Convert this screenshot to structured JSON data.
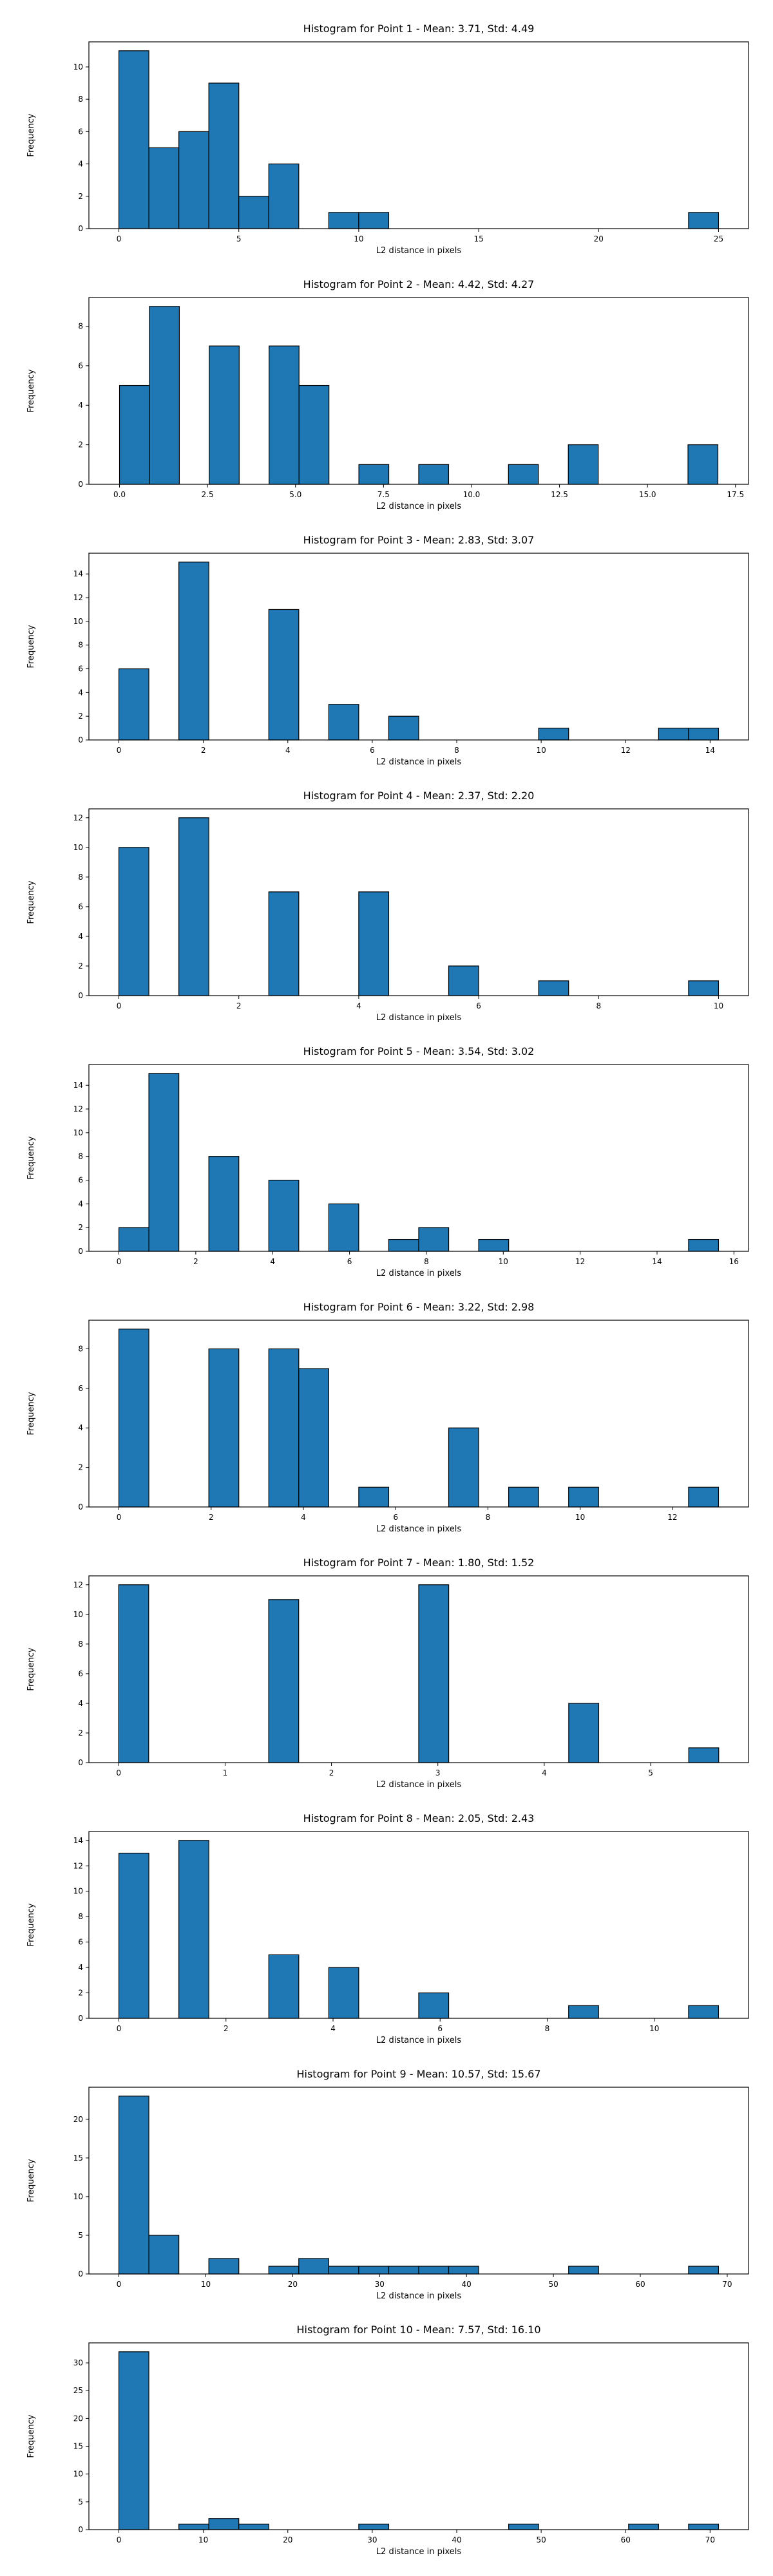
{
  "colors": {
    "bar_fill": "#1f77b4",
    "bar_edge": "#000000",
    "background": "#ffffff"
  },
  "chart_data": [
    {
      "type": "bar",
      "title": "Histogram for Point 1 - Mean: 3.71, Std: 4.49",
      "xlabel": "L2 distance in pixels",
      "ylabel": "Frequency",
      "xlim": [
        -1.25,
        26.25
      ],
      "ylim": [
        0,
        11.55
      ],
      "bin_edges": [
        0,
        1.25,
        2.5,
        3.75,
        5,
        6.25,
        7.5,
        8.75,
        10,
        11.25,
        12.5,
        13.75,
        15,
        16.25,
        17.5,
        18.75,
        20,
        21.25,
        22.5,
        23.75,
        25
      ],
      "values": [
        11,
        5,
        6,
        9,
        2,
        4,
        0,
        1,
        1,
        0,
        0,
        0,
        0,
        0,
        0,
        0,
        0,
        0,
        0,
        1
      ],
      "x_ticks": [
        0,
        5,
        10,
        15,
        20,
        25
      ],
      "y_ticks": [
        0,
        2,
        4,
        6,
        8,
        10
      ],
      "grid": false
    },
    {
      "type": "bar",
      "title": "Histogram for Point 2 - Mean: 4.42, Std: 4.27",
      "xlabel": "L2 distance in pixels",
      "ylabel": "Frequency",
      "xlim": [
        -0.87,
        17.87
      ],
      "ylim": [
        0,
        9.45
      ],
      "bin_edges": [
        0,
        0.85,
        1.7,
        2.55,
        3.4,
        4.25,
        5.1,
        5.95,
        6.8,
        7.65,
        8.5,
        9.35,
        10.2,
        11.05,
        11.9,
        12.75,
        13.6,
        14.45,
        15.3,
        16.15,
        17.0
      ],
      "values": [
        5,
        9,
        0,
        7,
        0,
        7,
        5,
        0,
        1,
        0,
        1,
        0,
        0,
        1,
        0,
        2,
        0,
        0,
        0,
        2
      ],
      "x_ticks": [
        0.0,
        2.5,
        5.0,
        7.5,
        10.0,
        12.5,
        15.0,
        17.5
      ],
      "y_ticks": [
        0,
        2,
        4,
        6,
        8
      ],
      "grid": false
    },
    {
      "type": "bar",
      "title": "Histogram for Point 3 - Mean: 2.83, Std: 3.07",
      "xlabel": "L2 distance in pixels",
      "ylabel": "Frequency",
      "xlim": [
        -0.71,
        14.91
      ],
      "ylim": [
        0,
        15.75
      ],
      "bin_edges": [
        0,
        0.71,
        1.42,
        2.13,
        2.84,
        3.55,
        4.26,
        4.97,
        5.68,
        6.39,
        7.1,
        7.81,
        8.52,
        9.23,
        9.94,
        10.65,
        11.36,
        12.07,
        12.78,
        13.49,
        14.2
      ],
      "values": [
        6,
        0,
        15,
        0,
        0,
        11,
        0,
        3,
        0,
        2,
        0,
        0,
        0,
        0,
        1,
        0,
        0,
        0,
        1,
        1
      ],
      "x_ticks": [
        0,
        2,
        4,
        6,
        8,
        10,
        12,
        14
      ],
      "y_ticks": [
        0,
        2,
        4,
        6,
        8,
        10,
        12,
        14
      ],
      "grid": false
    },
    {
      "type": "bar",
      "title": "Histogram for Point 4 - Mean: 2.37, Std: 2.20",
      "xlabel": "L2 distance in pixels",
      "ylabel": "Frequency",
      "xlim": [
        -0.5,
        10.5
      ],
      "ylim": [
        0,
        12.6
      ],
      "bin_edges": [
        0,
        0.5,
        1.0,
        1.5,
        2.0,
        2.5,
        3.0,
        3.5,
        4.0,
        4.5,
        5.0,
        5.5,
        6.0,
        6.5,
        7.0,
        7.5,
        8.0,
        8.5,
        9.0,
        9.5,
        10.0
      ],
      "values": [
        10,
        0,
        12,
        0,
        0,
        7,
        0,
        0,
        7,
        0,
        0,
        2,
        0,
        0,
        1,
        0,
        0,
        0,
        0,
        1
      ],
      "x_ticks": [
        0,
        2,
        4,
        6,
        8,
        10
      ],
      "y_ticks": [
        0,
        2,
        4,
        6,
        8,
        10,
        12
      ],
      "grid": false
    },
    {
      "type": "bar",
      "title": "Histogram for Point 5 - Mean: 3.54, Std: 3.02",
      "xlabel": "L2 distance in pixels",
      "ylabel": "Frequency",
      "xlim": [
        -0.78,
        16.38
      ],
      "ylim": [
        0,
        15.75
      ],
      "bin_edges": [
        0,
        0.78,
        1.56,
        2.34,
        3.12,
        3.9,
        4.68,
        5.46,
        6.24,
        7.02,
        7.8,
        8.58,
        9.36,
        10.14,
        10.92,
        11.7,
        12.48,
        13.26,
        14.04,
        14.82,
        15.6
      ],
      "values": [
        2,
        15,
        0,
        8,
        0,
        6,
        0,
        4,
        0,
        1,
        2,
        0,
        1,
        0,
        0,
        0,
        0,
        0,
        0,
        1
      ],
      "x_ticks": [
        0,
        2,
        4,
        6,
        8,
        10,
        12,
        14,
        16
      ],
      "y_ticks": [
        0,
        2,
        4,
        6,
        8,
        10,
        12,
        14
      ],
      "grid": false
    },
    {
      "type": "bar",
      "title": "Histogram for Point 6 - Mean: 3.22, Std: 2.98",
      "xlabel": "L2 distance in pixels",
      "ylabel": "Frequency",
      "xlim": [
        -0.65,
        13.65
      ],
      "ylim": [
        0,
        9.45
      ],
      "bin_edges": [
        0,
        0.65,
        1.3,
        1.95,
        2.6,
        3.25,
        3.9,
        4.55,
        5.2,
        5.85,
        6.5,
        7.15,
        7.8,
        8.45,
        9.1,
        9.75,
        10.4,
        11.05,
        11.7,
        12.35,
        13.0
      ],
      "values": [
        9,
        0,
        0,
        8,
        0,
        8,
        7,
        0,
        1,
        0,
        0,
        4,
        0,
        1,
        0,
        1,
        0,
        0,
        0,
        1
      ],
      "x_ticks": [
        0,
        2,
        4,
        6,
        8,
        10,
        12
      ],
      "y_ticks": [
        0,
        2,
        4,
        6,
        8
      ],
      "grid": false
    },
    {
      "type": "bar",
      "title": "Histogram for Point 7 - Mean: 1.80, Std: 1.52",
      "xlabel": "L2 distance in pixels",
      "ylabel": "Frequency",
      "xlim": [
        -0.28,
        5.92
      ],
      "ylim": [
        0,
        12.6
      ],
      "bin_edges": [
        0,
        0.282,
        0.564,
        0.846,
        1.128,
        1.41,
        1.692,
        1.974,
        2.256,
        2.538,
        2.82,
        3.102,
        3.384,
        3.666,
        3.948,
        4.23,
        4.512,
        4.794,
        5.076,
        5.358,
        5.64
      ],
      "values": [
        12,
        0,
        0,
        0,
        0,
        11,
        0,
        0,
        0,
        0,
        12,
        0,
        0,
        0,
        0,
        4,
        0,
        0,
        0,
        1
      ],
      "x_ticks": [
        0,
        1,
        2,
        3,
        4,
        5
      ],
      "y_ticks": [
        0,
        2,
        4,
        6,
        8,
        10,
        12
      ],
      "grid": false
    },
    {
      "type": "bar",
      "title": "Histogram for Point 8 - Mean: 2.05, Std: 2.43",
      "xlabel": "L2 distance in pixels",
      "ylabel": "Frequency",
      "xlim": [
        -0.56,
        11.76
      ],
      "ylim": [
        0,
        14.7
      ],
      "bin_edges": [
        0,
        0.56,
        1.12,
        1.68,
        2.24,
        2.8,
        3.36,
        3.92,
        4.48,
        5.04,
        5.6,
        6.16,
        6.72,
        7.28,
        7.84,
        8.4,
        8.96,
        9.52,
        10.08,
        10.64,
        11.2
      ],
      "values": [
        13,
        0,
        14,
        0,
        0,
        5,
        0,
        4,
        0,
        0,
        2,
        0,
        0,
        0,
        0,
        1,
        0,
        0,
        0,
        1
      ],
      "x_ticks": [
        0,
        2,
        4,
        6,
        8,
        10
      ],
      "y_ticks": [
        0,
        2,
        4,
        6,
        8,
        10,
        12,
        14
      ],
      "grid": false
    },
    {
      "type": "bar",
      "title": "Histogram for Point 9 - Mean: 10.57, Std: 15.67",
      "xlabel": "L2 distance in pixels",
      "ylabel": "Frequency",
      "xlim": [
        -3.45,
        72.45
      ],
      "ylim": [
        0,
        24.15
      ],
      "bin_edges": [
        0,
        3.45,
        6.9,
        10.35,
        13.8,
        17.25,
        20.7,
        24.15,
        27.6,
        31.05,
        34.5,
        37.95,
        41.4,
        44.85,
        48.3,
        51.75,
        55.2,
        58.65,
        62.1,
        65.55,
        69.0
      ],
      "values": [
        23,
        5,
        0,
        2,
        0,
        1,
        2,
        1,
        1,
        1,
        1,
        1,
        0,
        0,
        0,
        1,
        0,
        0,
        0,
        1
      ],
      "x_ticks": [
        0,
        10,
        20,
        30,
        40,
        50,
        60,
        70
      ],
      "y_ticks": [
        0,
        5,
        10,
        15,
        20
      ],
      "grid": false
    },
    {
      "type": "bar",
      "title": "Histogram for Point 10 - Mean: 7.57, Std: 16.10",
      "xlabel": "L2 distance in pixels",
      "ylabel": "Frequency",
      "xlim": [
        -3.55,
        74.55
      ],
      "ylim": [
        0,
        33.6
      ],
      "bin_edges": [
        0,
        3.55,
        7.1,
        10.65,
        14.2,
        17.75,
        21.3,
        24.85,
        28.4,
        31.95,
        35.5,
        39.05,
        42.6,
        46.15,
        49.7,
        53.25,
        56.8,
        60.35,
        63.9,
        67.45,
        71.0
      ],
      "values": [
        32,
        0,
        1,
        2,
        1,
        0,
        0,
        0,
        1,
        0,
        0,
        0,
        0,
        1,
        0,
        0,
        0,
        1,
        0,
        1
      ],
      "x_ticks": [
        0,
        10,
        20,
        30,
        40,
        50,
        60,
        70
      ],
      "y_ticks": [
        0,
        5,
        10,
        15,
        20,
        25,
        30
      ],
      "grid": false
    }
  ]
}
